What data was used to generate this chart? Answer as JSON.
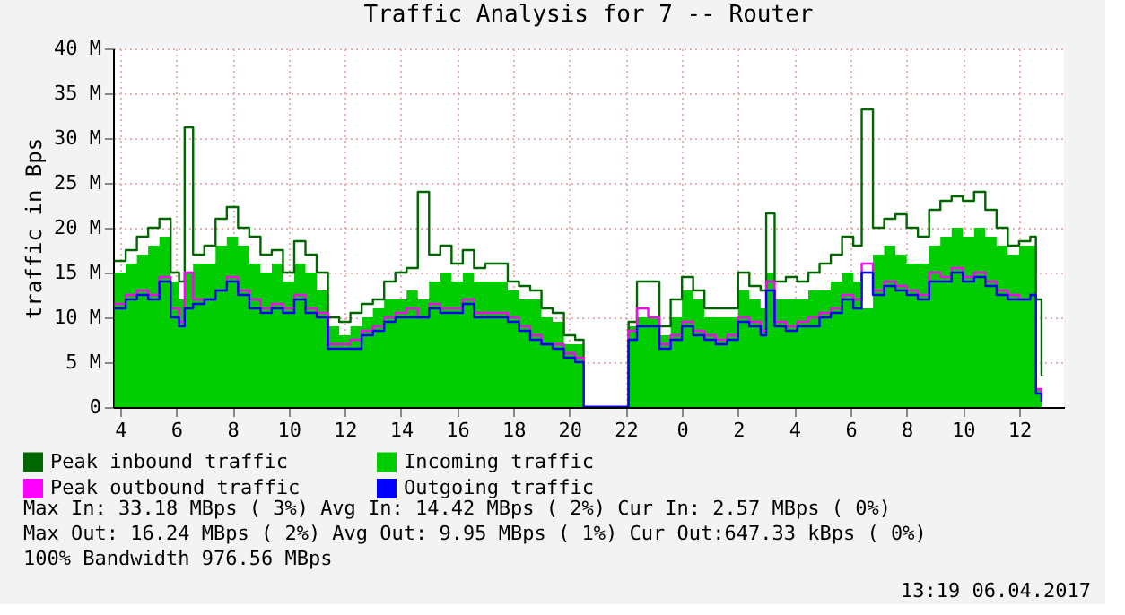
{
  "chart_data": {
    "type": "area",
    "title": "Traffic Analysis for 7 -- Router",
    "ylabel": "traffic in Bps",
    "x": [
      "2017-04-05T03:48",
      "2017-04-05T04:12",
      "2017-04-05T04:36",
      "2017-04-05T05:00",
      "2017-04-05T05:24",
      "2017-04-05T05:48",
      "2017-04-05T06:06",
      "2017-04-05T06:18",
      "2017-04-05T06:36",
      "2017-04-05T07:00",
      "2017-04-05T07:24",
      "2017-04-05T07:48",
      "2017-04-05T08:12",
      "2017-04-05T08:36",
      "2017-04-05T09:00",
      "2017-04-05T09:24",
      "2017-04-05T09:48",
      "2017-04-05T10:12",
      "2017-04-05T10:36",
      "2017-04-05T11:00",
      "2017-04-05T11:24",
      "2017-04-05T11:48",
      "2017-04-05T12:12",
      "2017-04-05T12:36",
      "2017-04-05T13:00",
      "2017-04-05T13:24",
      "2017-04-05T13:48",
      "2017-04-05T14:12",
      "2017-04-05T14:36",
      "2017-04-05T15:00",
      "2017-04-05T15:24",
      "2017-04-05T15:48",
      "2017-04-05T16:12",
      "2017-04-05T16:36",
      "2017-04-05T17:00",
      "2017-04-05T17:24",
      "2017-04-05T17:48",
      "2017-04-05T18:12",
      "2017-04-05T18:36",
      "2017-04-05T19:00",
      "2017-04-05T19:24",
      "2017-04-05T19:48",
      "2017-04-05T20:12",
      "2017-04-05T20:30",
      "2017-04-05T22:03",
      "2017-04-05T22:06",
      "2017-04-05T22:24",
      "2017-04-05T22:48",
      "2017-04-05T23:12",
      "2017-04-05T23:36",
      "2017-04-06T00:00",
      "2017-04-06T00:24",
      "2017-04-06T00:48",
      "2017-04-06T01:12",
      "2017-04-06T01:36",
      "2017-04-06T02:00",
      "2017-04-06T02:24",
      "2017-04-06T02:48",
      "2017-04-06T03:00",
      "2017-04-06T03:18",
      "2017-04-06T03:42",
      "2017-04-06T04:06",
      "2017-04-06T04:30",
      "2017-04-06T04:54",
      "2017-04-06T05:18",
      "2017-04-06T05:42",
      "2017-04-06T06:06",
      "2017-04-06T06:24",
      "2017-04-06T06:48",
      "2017-04-06T07:12",
      "2017-04-06T07:36",
      "2017-04-06T08:00",
      "2017-04-06T08:24",
      "2017-04-06T08:48",
      "2017-04-06T09:12",
      "2017-04-06T09:36",
      "2017-04-06T10:00",
      "2017-04-06T10:24",
      "2017-04-06T10:48",
      "2017-04-06T11:12",
      "2017-04-06T11:36",
      "2017-04-06T12:00",
      "2017-04-06T12:24",
      "2017-04-06T12:36",
      "2017-04-06T12:48"
    ],
    "series": [
      {
        "name": "Peak inbound traffic",
        "type": "step",
        "color": "#006600",
        "values": [
          16.3,
          17.5,
          19,
          20,
          21,
          15,
          14,
          31.2,
          17,
          18,
          21,
          22.3,
          20,
          19,
          17,
          17.5,
          15,
          18.5,
          17,
          15,
          10,
          9.5,
          10.5,
          11.5,
          12,
          14,
          15,
          15.5,
          24,
          17,
          18,
          16,
          17.5,
          15.5,
          16,
          16,
          14,
          13.5,
          13,
          11,
          10.5,
          8,
          7.5,
          0,
          0,
          9.5,
          14,
          14,
          9,
          12,
          14.5,
          13,
          11,
          11,
          11,
          15,
          13.5,
          13,
          21.6,
          14,
          14.5,
          14,
          15,
          16,
          17,
          19,
          18,
          33.2,
          20,
          21,
          21.5,
          20,
          19,
          22,
          23,
          23.5,
          23,
          24,
          22,
          20,
          18,
          18.5,
          19,
          12,
          3.5
        ]
      },
      {
        "name": "Peak outbound traffic",
        "type": "step",
        "color": "#ff00ff",
        "values": [
          11.5,
          12.5,
          13,
          12.5,
          14.5,
          11,
          9.5,
          15,
          12,
          12,
          13,
          14.5,
          13,
          12,
          11,
          11.5,
          11,
          12.5,
          11,
          10.5,
          7,
          7,
          7.5,
          8.5,
          9,
          10,
          10.5,
          11,
          10,
          11.5,
          11,
          11,
          12,
          10.5,
          10.5,
          10.5,
          10,
          9,
          8,
          7,
          7,
          6,
          5.5,
          0,
          0,
          8.5,
          11,
          10,
          7,
          8,
          9.5,
          8.5,
          8,
          7.5,
          8,
          10,
          9.5,
          8.5,
          14,
          9.5,
          9,
          9.5,
          10,
          10.5,
          11,
          12.5,
          12,
          16,
          13,
          14,
          13.5,
          13,
          12.5,
          15,
          14.5,
          15.5,
          14.5,
          15,
          14,
          13,
          12.5,
          12,
          12.5,
          2,
          1
        ]
      },
      {
        "name": "Incoming traffic",
        "color": "#00cc00",
        "values": [
          15,
          16,
          17,
          18,
          19,
          14,
          12,
          15,
          16,
          16,
          18,
          19,
          18,
          16,
          15,
          16,
          14,
          16,
          15,
          13,
          9,
          8,
          9,
          10,
          11,
          12,
          12,
          13,
          12,
          14,
          15,
          14,
          15,
          14,
          14,
          14,
          13,
          12,
          12,
          10,
          9.5,
          7,
          7,
          0,
          0,
          9,
          10,
          10,
          8,
          10,
          13,
          12,
          10,
          10,
          10,
          13,
          12,
          11,
          15,
          12,
          12,
          12,
          13,
          13,
          14,
          15,
          14,
          11,
          17,
          18,
          17,
          16,
          16,
          18,
          19,
          20,
          19,
          20,
          19,
          18,
          17,
          18,
          18,
          2,
          2.5
        ]
      },
      {
        "name": "Outgoing traffic",
        "type": "step",
        "color": "#0000ff",
        "values": [
          11,
          12,
          12.5,
          12,
          14,
          10,
          9,
          11,
          11.5,
          12,
          13,
          14,
          12.5,
          11,
          10.5,
          11,
          10.5,
          12,
          10.5,
          10,
          6.5,
          6.5,
          6.5,
          8,
          8.5,
          9.5,
          10,
          10,
          10,
          11,
          10.5,
          10.5,
          11.5,
          10,
          10,
          10,
          9.5,
          8.5,
          7.5,
          7,
          6.5,
          5.5,
          5,
          0,
          0,
          7.5,
          9,
          9,
          6.5,
          7.5,
          9,
          8,
          7.5,
          7,
          7.5,
          9.5,
          9,
          8,
          13,
          9,
          8.5,
          9,
          9,
          10,
          10.5,
          12,
          11,
          15,
          12.5,
          13.5,
          13,
          12.5,
          12,
          14,
          14,
          15,
          14,
          14.5,
          13.5,
          12.5,
          12,
          12,
          12.5,
          1.5,
          0.6
        ]
      }
    ],
    "xlim": [
      "2017-04-05T03:45",
      "2017-04-06T13:36"
    ],
    "xticks": [
      {
        "value": "2017-04-05T04:00",
        "label": "4"
      },
      {
        "value": "2017-04-05T06:00",
        "label": "6"
      },
      {
        "value": "2017-04-05T08:00",
        "label": "8"
      },
      {
        "value": "2017-04-05T10:00",
        "label": "10"
      },
      {
        "value": "2017-04-05T12:00",
        "label": "12"
      },
      {
        "value": "2017-04-05T14:00",
        "label": "14"
      },
      {
        "value": "2017-04-05T16:00",
        "label": "16"
      },
      {
        "value": "2017-04-05T18:00",
        "label": "18"
      },
      {
        "value": "2017-04-05T20:00",
        "label": "20"
      },
      {
        "value": "2017-04-05T22:00",
        "label": "22"
      },
      {
        "value": "2017-04-06T00:00",
        "label": "0"
      },
      {
        "value": "2017-04-06T02:00",
        "label": "2"
      },
      {
        "value": "2017-04-06T04:00",
        "label": "4"
      },
      {
        "value": "2017-04-06T06:00",
        "label": "6"
      },
      {
        "value": "2017-04-06T08:00",
        "label": "8"
      },
      {
        "value": "2017-04-06T10:00",
        "label": "10"
      },
      {
        "value": "2017-04-06T12:00",
        "label": "12"
      }
    ],
    "ylim": [
      0,
      40
    ],
    "yticks": [
      0,
      {
        "value": 5,
        "label": "5 M"
      },
      {
        "value": 10,
        "label": "10 M"
      },
      {
        "value": 15,
        "label": "15 M"
      },
      {
        "value": 20,
        "label": "20 M"
      },
      {
        "value": 25,
        "label": "25 M"
      },
      {
        "value": 30,
        "label": "30 M"
      },
      {
        "value": 35,
        "label": "35 M"
      },
      {
        "value": 40,
        "label": "40 M"
      }
    ],
    "grid": true,
    "legend": "bottom left",
    "annotations": [
      "Max In:  33.18 MBps ( 3%)  Avg In:  14.42 MBps ( 2%)  Cur In:   2.57 MBps ( 0%)",
      "Max Out: 16.24 MBps ( 2%)  Avg Out:  9.95 MBps ( 1%)  Cur Out:647.33 kBps ( 0%)",
      "100% Bandwidth 976.56 MBps",
      "13:19 06.04.2017"
    ]
  }
}
